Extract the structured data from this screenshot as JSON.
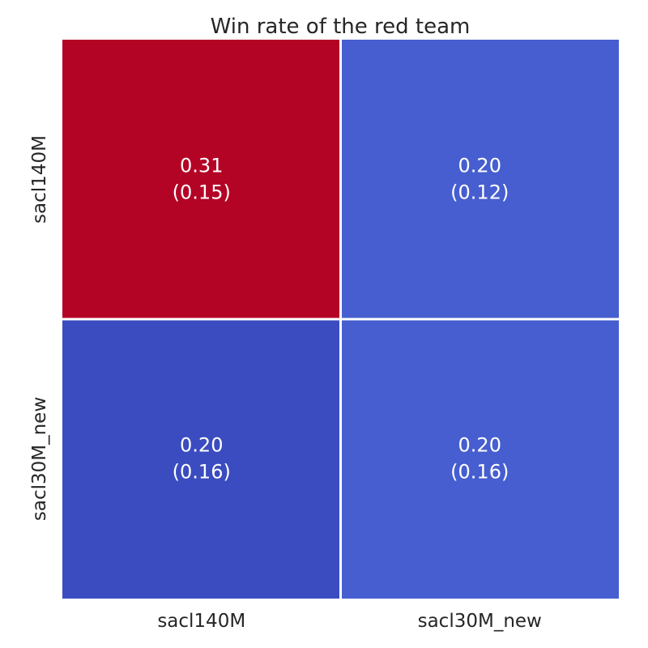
{
  "chart_data": {
    "type": "heatmap",
    "title": "Win rate of the red team",
    "xlabel": "",
    "ylabel": "",
    "x_categories": [
      "sacl140M",
      "sacl30M_new"
    ],
    "y_categories": [
      "sacl140M",
      "sacl30M_new"
    ],
    "values": [
      [
        0.31,
        0.2
      ],
      [
        0.2,
        0.2
      ]
    ],
    "std": [
      [
        0.15,
        0.12
      ],
      [
        0.16,
        0.16
      ]
    ],
    "cell_labels": [
      [
        [
          "0.31",
          "(0.15)"
        ],
        [
          "0.20",
          "(0.12)"
        ]
      ],
      [
        [
          "0.20",
          "(0.16)"
        ],
        [
          "0.20",
          "(0.16)"
        ]
      ]
    ],
    "colormap": "coolwarm",
    "cell_colors": [
      [
        "#b40426",
        "#465ecf"
      ],
      [
        "#3b4cc0",
        "#465ecf"
      ]
    ],
    "gridline_color": "#ffffff",
    "colorbar": false
  }
}
